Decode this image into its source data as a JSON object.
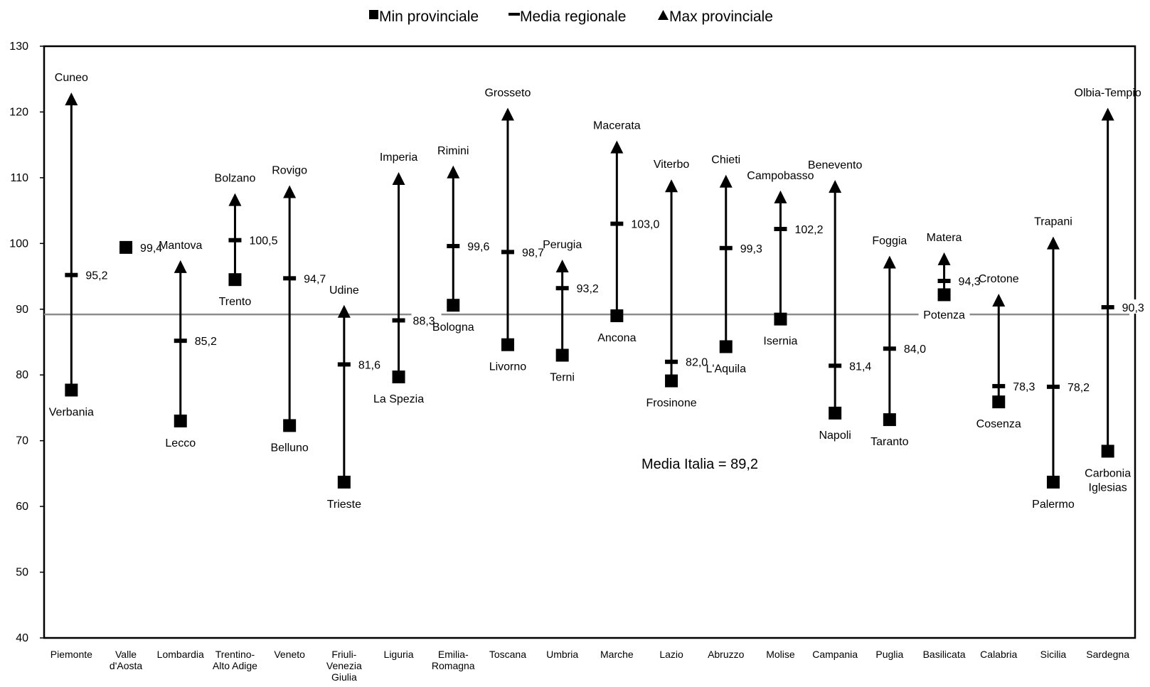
{
  "legend": {
    "min_label": "Min provinciale",
    "mean_label": "Media regionale",
    "max_label": "Max provinciale"
  },
  "annotation": "Media Italia = 89,2",
  "chart_data": {
    "type": "range",
    "ylim": [
      40,
      130
    ],
    "yticks": [
      40,
      50,
      60,
      70,
      80,
      90,
      100,
      110,
      120,
      130
    ],
    "reference_line": {
      "value": 89.2,
      "label": "Media Italia = 89,2"
    },
    "regions": [
      {
        "name": [
          "Piemonte"
        ],
        "min": 77.7,
        "min_prov": "Verbania",
        "mean": 95.2,
        "mean_label": "95,2",
        "max": 122.3,
        "max_prov": "Cuneo"
      },
      {
        "name": [
          "Valle",
          "d'Aosta"
        ],
        "min": 99.4,
        "min_prov": "",
        "mean": 99.4,
        "mean_label": "99,4",
        "max": 99.4,
        "max_prov": ""
      },
      {
        "name": [
          "Lombardia"
        ],
        "min": 73.0,
        "min_prov": "Lecco",
        "mean": 85.2,
        "mean_label": "85,2",
        "max": 96.8,
        "max_prov": "Mantova"
      },
      {
        "name": [
          "Trentino-",
          "Alto Adige"
        ],
        "min": 94.5,
        "min_prov": "Trento",
        "mean": 100.5,
        "mean_label": "100,5",
        "max": 107.0,
        "max_prov": "Bolzano"
      },
      {
        "name": [
          "Veneto"
        ],
        "min": 72.3,
        "min_prov": "Belluno",
        "mean": 94.7,
        "mean_label": "94,7",
        "max": 108.2,
        "max_prov": "Rovigo"
      },
      {
        "name": [
          "Friuli-",
          "Venezia",
          "Giulia"
        ],
        "min": 63.7,
        "min_prov": "Trieste",
        "mean": 81.6,
        "mean_label": "81,6",
        "max": 90.0,
        "max_prov": "Udine"
      },
      {
        "name": [
          "Liguria"
        ],
        "min": 79.7,
        "min_prov": "La Spezia",
        "mean": 88.3,
        "mean_label": "88,3",
        "max": 110.2,
        "max_prov": "Imperia"
      },
      {
        "name": [
          "Emilia-",
          "Romagna"
        ],
        "min": 90.6,
        "min_prov": "Bologna",
        "mean": 99.6,
        "mean_label": "99,6",
        "max": 111.2,
        "max_prov": "Rimini"
      },
      {
        "name": [
          "Toscana"
        ],
        "min": 84.6,
        "min_prov": "Livorno",
        "mean": 98.7,
        "mean_label": "98,7",
        "max": 120.0,
        "max_prov": "Grosseto"
      },
      {
        "name": [
          "Umbria"
        ],
        "min": 83.0,
        "min_prov": "Terni",
        "mean": 93.2,
        "mean_label": "93,2",
        "max": 96.9,
        "max_prov": "Perugia"
      },
      {
        "name": [
          "Marche"
        ],
        "min": 89.0,
        "min_prov": "Ancona",
        "mean": 103.0,
        "mean_label": "103,0",
        "max": 115.0,
        "max_prov": "Macerata"
      },
      {
        "name": [
          "Lazio"
        ],
        "min": 79.1,
        "min_prov": "Frosinone",
        "mean": 82.0,
        "mean_label": "82,0",
        "max": 109.1,
        "max_prov": "Viterbo"
      },
      {
        "name": [
          "Abruzzo"
        ],
        "min": 84.3,
        "min_prov": "L'Aquila",
        "mean": 99.3,
        "mean_label": "99,3",
        "max": 109.8,
        "max_prov": "Chieti"
      },
      {
        "name": [
          "Molise"
        ],
        "min": 88.5,
        "min_prov": "Isernia",
        "mean": 102.2,
        "mean_label": "102,2",
        "max": 107.4,
        "max_prov": "Campobasso"
      },
      {
        "name": [
          "Campania"
        ],
        "min": 74.2,
        "min_prov": "Napoli",
        "mean": 81.4,
        "mean_label": "81,4",
        "max": 109.0,
        "max_prov": "Benevento"
      },
      {
        "name": [
          "Puglia"
        ],
        "min": 73.2,
        "min_prov": "Taranto",
        "mean": 84.0,
        "mean_label": "84,0",
        "max": 97.5,
        "max_prov": "Foggia"
      },
      {
        "name": [
          "Basilicata"
        ],
        "min": 92.2,
        "min_prov": "Potenza",
        "mean": 94.3,
        "mean_label": "94,3",
        "max": 98.0,
        "max_prov": "Matera"
      },
      {
        "name": [
          "Calabria"
        ],
        "min": 75.9,
        "min_prov": "Cosenza",
        "mean": 78.3,
        "mean_label": "78,3",
        "max": 91.7,
        "max_prov": "Crotone"
      },
      {
        "name": [
          "Sicilia"
        ],
        "min": 63.7,
        "min_prov": "Palermo",
        "mean": 78.2,
        "mean_label": "78,2",
        "max": 100.4,
        "max_prov": "Trapani"
      },
      {
        "name": [
          "Sardegna"
        ],
        "min": 68.4,
        "min_prov": "Carbonia\nIglesias",
        "mean": 90.3,
        "mean_label": "90,3",
        "max": 120.0,
        "max_prov": "Olbia-Tempio"
      }
    ]
  }
}
